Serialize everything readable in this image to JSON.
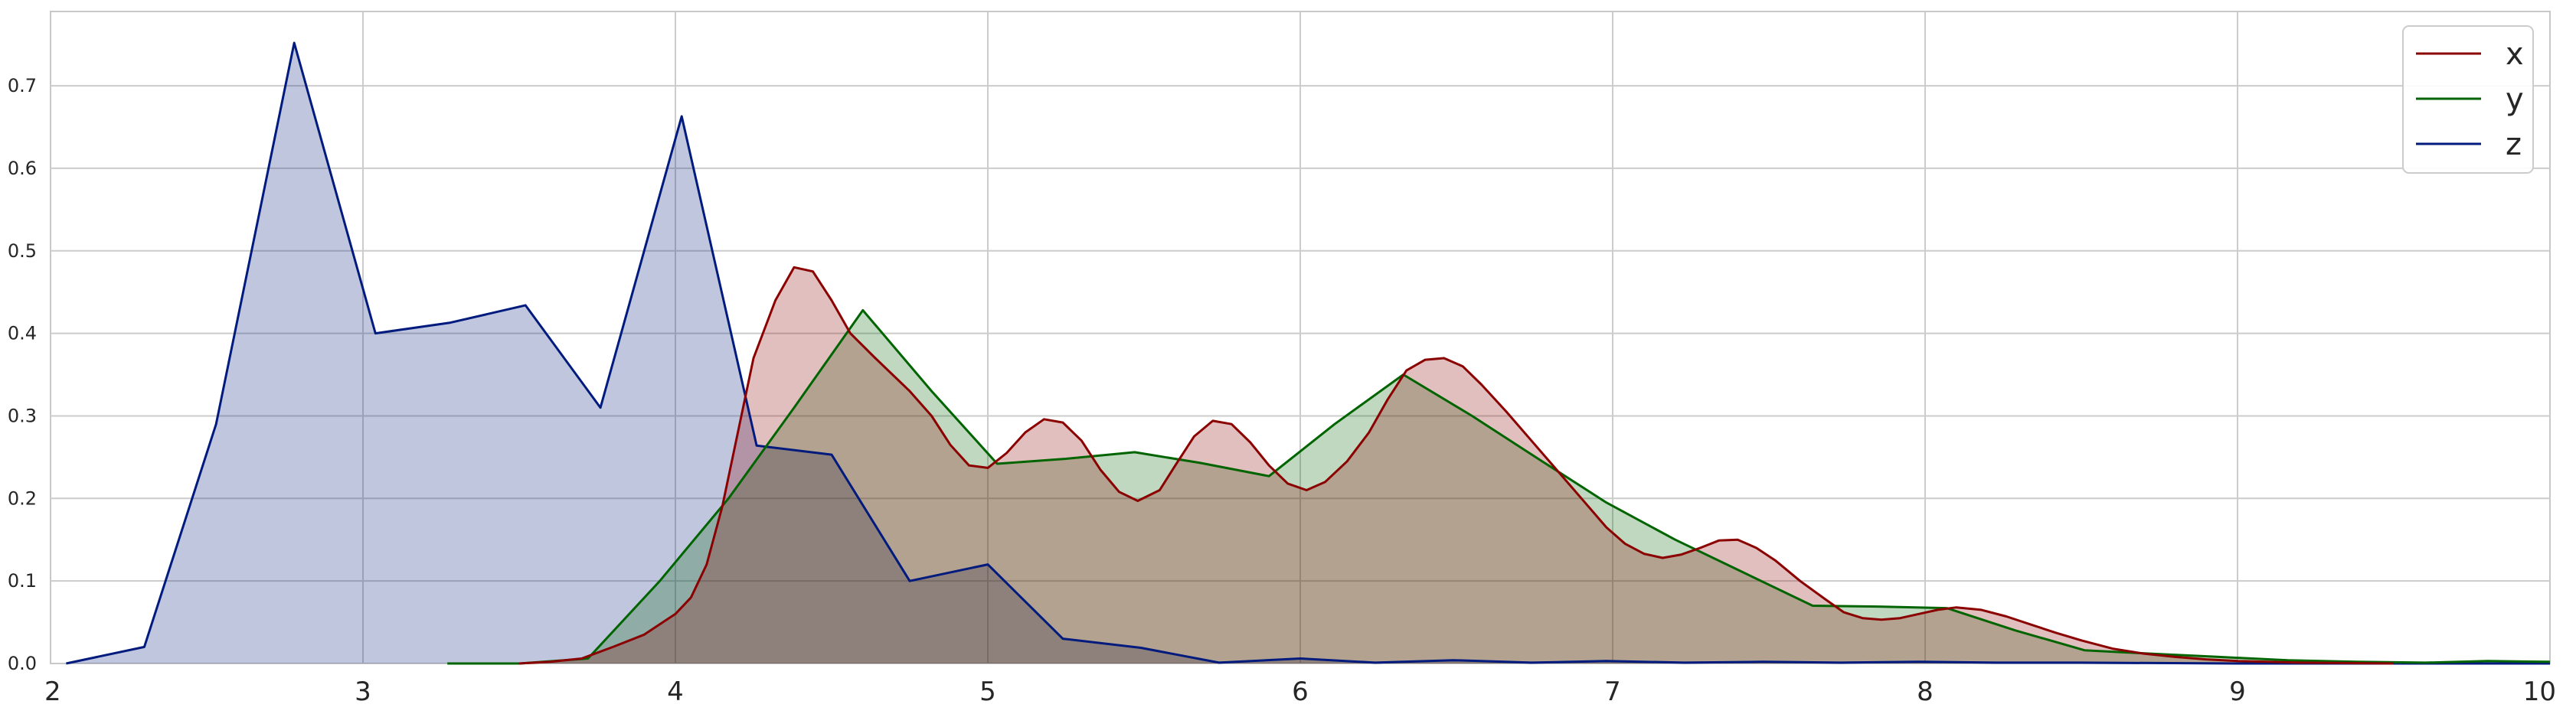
{
  "chart_data": {
    "type": "area",
    "title": "",
    "xlabel": "",
    "ylabel": "",
    "xlim": [
      2,
      10
    ],
    "ylim": [
      0,
      0.79
    ],
    "xticks": [
      "2",
      "3",
      "4",
      "5",
      "6",
      "7",
      "8",
      "9",
      "10"
    ],
    "yticks": [
      "0.0",
      "0.1",
      "0.2",
      "0.3",
      "0.4",
      "0.5",
      "0.6",
      "0.7"
    ],
    "grid": true,
    "legend_position": "top-right",
    "series": [
      {
        "name": "x",
        "color": "#8b0000",
        "fill": "#e0b4b4",
        "points": [
          [
            3.5,
            0
          ],
          [
            3.6,
            0.002
          ],
          [
            3.7,
            0.006
          ],
          [
            3.8,
            0.02
          ],
          [
            3.9,
            0.035
          ],
          [
            4.0,
            0.06
          ],
          [
            4.05,
            0.08
          ],
          [
            4.1,
            0.12
          ],
          [
            4.15,
            0.19
          ],
          [
            4.2,
            0.28
          ],
          [
            4.25,
            0.37
          ],
          [
            4.32,
            0.44
          ],
          [
            4.38,
            0.48
          ],
          [
            4.44,
            0.475
          ],
          [
            4.5,
            0.44
          ],
          [
            4.56,
            0.4
          ],
          [
            4.64,
            0.37
          ],
          [
            4.75,
            0.33
          ],
          [
            4.82,
            0.3
          ],
          [
            4.88,
            0.265
          ],
          [
            4.94,
            0.24
          ],
          [
            5.0,
            0.237
          ],
          [
            5.06,
            0.255
          ],
          [
            5.12,
            0.28
          ],
          [
            5.18,
            0.296
          ],
          [
            5.24,
            0.292
          ],
          [
            5.3,
            0.27
          ],
          [
            5.36,
            0.235
          ],
          [
            5.42,
            0.208
          ],
          [
            5.48,
            0.197
          ],
          [
            5.55,
            0.21
          ],
          [
            5.6,
            0.24
          ],
          [
            5.66,
            0.275
          ],
          [
            5.72,
            0.294
          ],
          [
            5.78,
            0.29
          ],
          [
            5.84,
            0.268
          ],
          [
            5.9,
            0.24
          ],
          [
            5.96,
            0.218
          ],
          [
            6.02,
            0.21
          ],
          [
            6.08,
            0.22
          ],
          [
            6.15,
            0.245
          ],
          [
            6.22,
            0.28
          ],
          [
            6.28,
            0.32
          ],
          [
            6.34,
            0.355
          ],
          [
            6.4,
            0.368
          ],
          [
            6.46,
            0.37
          ],
          [
            6.52,
            0.36
          ],
          [
            6.58,
            0.338
          ],
          [
            6.66,
            0.305
          ],
          [
            6.74,
            0.27
          ],
          [
            6.82,
            0.235
          ],
          [
            6.9,
            0.2
          ],
          [
            6.98,
            0.165
          ],
          [
            7.04,
            0.145
          ],
          [
            7.1,
            0.133
          ],
          [
            7.16,
            0.128
          ],
          [
            7.22,
            0.132
          ],
          [
            7.28,
            0.14
          ],
          [
            7.34,
            0.149
          ],
          [
            7.4,
            0.15
          ],
          [
            7.46,
            0.14
          ],
          [
            7.52,
            0.125
          ],
          [
            7.6,
            0.1
          ],
          [
            7.68,
            0.078
          ],
          [
            7.74,
            0.062
          ],
          [
            7.8,
            0.055
          ],
          [
            7.86,
            0.053
          ],
          [
            7.92,
            0.055
          ],
          [
            7.98,
            0.06
          ],
          [
            8.04,
            0.065
          ],
          [
            8.1,
            0.068
          ],
          [
            8.18,
            0.065
          ],
          [
            8.26,
            0.057
          ],
          [
            8.34,
            0.047
          ],
          [
            8.42,
            0.037
          ],
          [
            8.5,
            0.028
          ],
          [
            8.6,
            0.018
          ],
          [
            8.7,
            0.012
          ],
          [
            8.8,
            0.008
          ],
          [
            8.9,
            0.005
          ],
          [
            9.0,
            0.003
          ],
          [
            9.2,
            0.001
          ],
          [
            9.5,
            0
          ]
        ]
      },
      {
        "name": "y",
        "color": "#006400",
        "fill": "#b4d4b4",
        "points": [
          [
            3.27,
            0
          ],
          [
            3.5,
            0
          ],
          [
            3.72,
            0.006
          ],
          [
            3.95,
            0.1
          ],
          [
            4.17,
            0.2
          ],
          [
            4.38,
            0.31
          ],
          [
            4.6,
            0.428
          ],
          [
            4.82,
            0.33
          ],
          [
            5.03,
            0.242
          ],
          [
            5.25,
            0.248
          ],
          [
            5.47,
            0.256
          ],
          [
            5.68,
            0.243
          ],
          [
            5.9,
            0.227
          ],
          [
            6.11,
            0.29
          ],
          [
            6.33,
            0.35
          ],
          [
            6.55,
            0.3
          ],
          [
            6.77,
            0.246
          ],
          [
            6.98,
            0.195
          ],
          [
            7.2,
            0.15
          ],
          [
            7.42,
            0.11
          ],
          [
            7.64,
            0.07
          ],
          [
            7.85,
            0.069
          ],
          [
            8.07,
            0.067
          ],
          [
            8.29,
            0.04
          ],
          [
            8.51,
            0.016
          ],
          [
            8.72,
            0.012
          ],
          [
            8.94,
            0.008
          ],
          [
            9.16,
            0.004
          ],
          [
            9.38,
            0.002
          ],
          [
            9.6,
            0.001
          ],
          [
            9.8,
            0.003
          ],
          [
            10.0,
            0.002
          ]
        ]
      },
      {
        "name": "z",
        "color": "#001a7d",
        "fill": "#bcc4de",
        "points": [
          [
            2.05,
            0
          ],
          [
            2.3,
            0.02
          ],
          [
            2.53,
            0.29
          ],
          [
            2.78,
            0.752
          ],
          [
            3.04,
            0.4
          ],
          [
            3.28,
            0.413
          ],
          [
            3.52,
            0.434
          ],
          [
            3.76,
            0.31
          ],
          [
            4.02,
            0.663
          ],
          [
            4.26,
            0.264
          ],
          [
            4.5,
            0.253
          ],
          [
            4.75,
            0.1
          ],
          [
            5.0,
            0.12
          ],
          [
            5.24,
            0.03
          ],
          [
            5.49,
            0.019
          ],
          [
            5.74,
            0.001
          ],
          [
            6.0,
            0.006
          ],
          [
            6.24,
            0.001
          ],
          [
            6.49,
            0.004
          ],
          [
            6.74,
            0.001
          ],
          [
            6.98,
            0.003
          ],
          [
            7.23,
            0.001
          ],
          [
            7.48,
            0.002
          ],
          [
            7.73,
            0.001
          ],
          [
            7.98,
            0.002
          ],
          [
            8.23,
            0.001
          ],
          [
            8.5,
            0.001
          ],
          [
            9.0,
            0
          ],
          [
            9.5,
            0
          ],
          [
            10.0,
            0
          ]
        ]
      }
    ]
  }
}
